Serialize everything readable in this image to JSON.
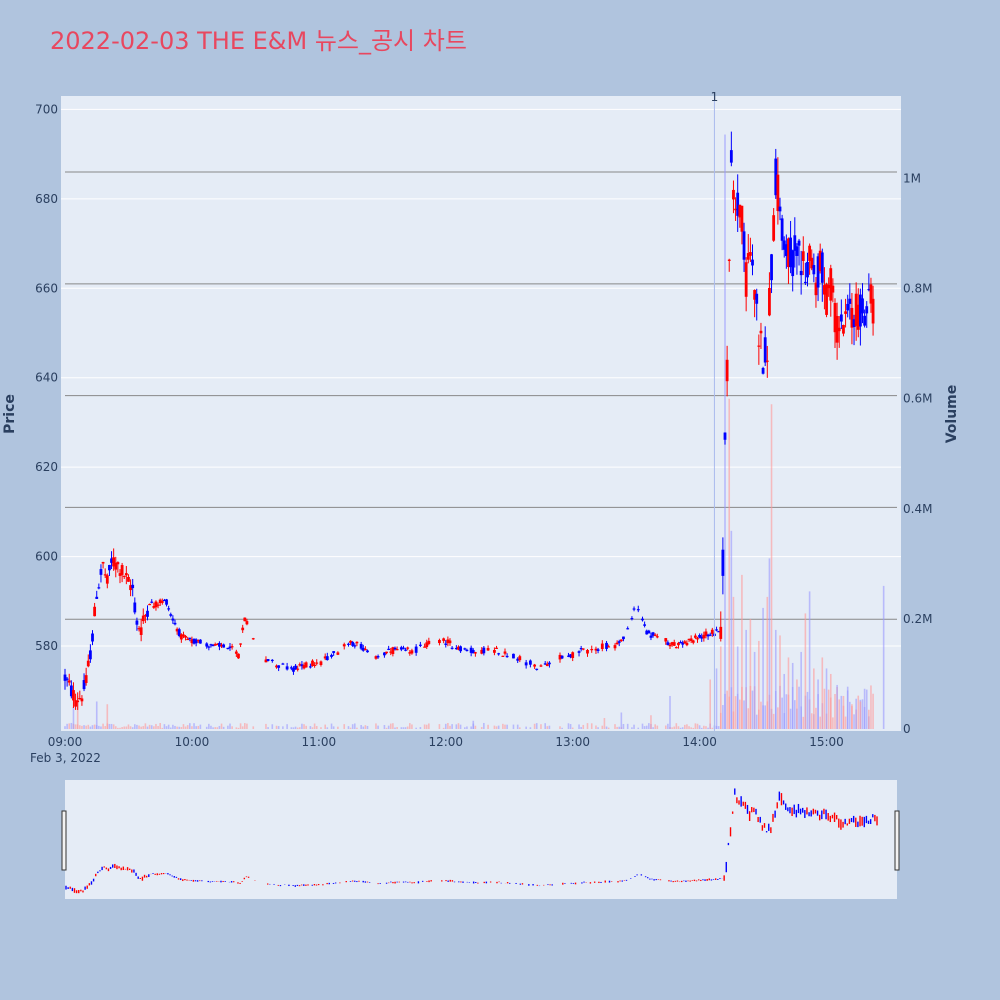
{
  "chart_data": {
    "type": "candlestick",
    "title": "2022-02-03 THE E&M 뉴스_공시 차트",
    "ylabel": "Price",
    "y2label": "Volume",
    "date_label": "Feb 3, 2022",
    "x_ticks": [
      "09:00",
      "10:00",
      "11:00",
      "12:00",
      "13:00",
      "14:00",
      "15:00"
    ],
    "price_ticks": [
      580,
      600,
      620,
      640,
      660,
      680,
      700
    ],
    "volume_ticks": [
      "0",
      "0.2M",
      "0.4M",
      "0.6M",
      "0.8M",
      "1M"
    ],
    "news_marker": {
      "label": "1",
      "time": "14:07"
    },
    "ylim": [
      561,
      703
    ],
    "y2lim": [
      0,
      1150000
    ],
    "xlim_minutes": [
      0,
      390
    ],
    "horizontal_levels": [
      586,
      611,
      636,
      661,
      686
    ],
    "colors": {
      "up": "#ff0000",
      "down": "#0000ff",
      "title": "#e8475f",
      "bg": "#e5ecf6",
      "page": "#b0c4de"
    },
    "anchors": [
      [
        0,
        573
      ],
      [
        3,
        570
      ],
      [
        5,
        568
      ],
      [
        8,
        569
      ],
      [
        10,
        572
      ],
      [
        13,
        582
      ],
      [
        15,
        592
      ],
      [
        18,
        598
      ],
      [
        20,
        594
      ],
      [
        22,
        599
      ],
      [
        25,
        598
      ],
      [
        28,
        596
      ],
      [
        30,
        594
      ],
      [
        32,
        593
      ],
      [
        34,
        585
      ],
      [
        36,
        584
      ],
      [
        38,
        587
      ],
      [
        40,
        590
      ],
      [
        42,
        589
      ],
      [
        45,
        590
      ],
      [
        48,
        590
      ],
      [
        50,
        587
      ],
      [
        52,
        585
      ],
      [
        55,
        582
      ],
      [
        60,
        581
      ],
      [
        65,
        581
      ],
      [
        70,
        580
      ],
      [
        75,
        580
      ],
      [
        80,
        579
      ],
      [
        82,
        578
      ],
      [
        85,
        586
      ],
      [
        88,
        583
      ],
      [
        90,
        580
      ],
      [
        95,
        577
      ],
      [
        100,
        576
      ],
      [
        105,
        575
      ],
      [
        110,
        575
      ],
      [
        115,
        576
      ],
      [
        120,
        576
      ],
      [
        125,
        578
      ],
      [
        130,
        579
      ],
      [
        135,
        581
      ],
      [
        140,
        580
      ],
      [
        145,
        577
      ],
      [
        150,
        578
      ],
      [
        155,
        579
      ],
      [
        160,
        579
      ],
      [
        165,
        579
      ],
      [
        170,
        580
      ],
      [
        175,
        581
      ],
      [
        180,
        581
      ],
      [
        185,
        580
      ],
      [
        190,
        579
      ],
      [
        195,
        579
      ],
      [
        200,
        579
      ],
      [
        205,
        579
      ],
      [
        210,
        578
      ],
      [
        215,
        577
      ],
      [
        220,
        576
      ],
      [
        225,
        575
      ],
      [
        230,
        576
      ],
      [
        235,
        578
      ],
      [
        240,
        578
      ],
      [
        245,
        579
      ],
      [
        250,
        579
      ],
      [
        255,
        580
      ],
      [
        260,
        580
      ],
      [
        265,
        582
      ],
      [
        268,
        586
      ],
      [
        270,
        590
      ],
      [
        272,
        587
      ],
      [
        275,
        583
      ],
      [
        280,
        582
      ],
      [
        285,
        581
      ],
      [
        290,
        580
      ],
      [
        295,
        581
      ],
      [
        300,
        582
      ],
      [
        305,
        583
      ],
      [
        308,
        583
      ],
      [
        310,
        585
      ],
      [
        311,
        600
      ],
      [
        312,
        625
      ],
      [
        313,
        640
      ],
      [
        314,
        668
      ],
      [
        315,
        690
      ],
      [
        316,
        682
      ],
      [
        318,
        680
      ],
      [
        320,
        675
      ],
      [
        322,
        662
      ],
      [
        324,
        668
      ],
      [
        326,
        660
      ],
      [
        328,
        650
      ],
      [
        330,
        645
      ],
      [
        332,
        648
      ],
      [
        334,
        665
      ],
      [
        336,
        685
      ],
      [
        338,
        678
      ],
      [
        340,
        672
      ],
      [
        342,
        668
      ],
      [
        344,
        666
      ],
      [
        346,
        670
      ],
      [
        348,
        665
      ],
      [
        350,
        663
      ],
      [
        352,
        668
      ],
      [
        355,
        662
      ],
      [
        358,
        665
      ],
      [
        360,
        658
      ],
      [
        362,
        660
      ],
      [
        365,
        652
      ],
      [
        368,
        650
      ],
      [
        370,
        655
      ],
      [
        372,
        653
      ],
      [
        375,
        655
      ],
      [
        378,
        656
      ],
      [
        380,
        657
      ],
      [
        382,
        656
      ]
    ],
    "volume_spikes": [
      [
        4,
        40000
      ],
      [
        6,
        60000
      ],
      [
        15,
        50000
      ],
      [
        20,
        45000
      ],
      [
        193,
        15000
      ],
      [
        255,
        20000
      ],
      [
        263,
        30000
      ],
      [
        277,
        25000
      ],
      [
        286,
        60000
      ],
      [
        305,
        90000
      ],
      [
        308,
        110000
      ],
      [
        310,
        150000
      ],
      [
        312,
        1080000
      ],
      [
        314,
        600000
      ],
      [
        315,
        360000
      ],
      [
        316,
        240000
      ],
      [
        318,
        150000
      ],
      [
        320,
        280000
      ],
      [
        322,
        180000
      ],
      [
        324,
        200000
      ],
      [
        326,
        140000
      ],
      [
        328,
        160000
      ],
      [
        330,
        220000
      ],
      [
        332,
        240000
      ],
      [
        333,
        310000
      ],
      [
        334,
        590000
      ],
      [
        336,
        180000
      ],
      [
        338,
        170000
      ],
      [
        340,
        100000
      ],
      [
        342,
        130000
      ],
      [
        344,
        120000
      ],
      [
        346,
        90000
      ],
      [
        348,
        140000
      ],
      [
        350,
        210000
      ],
      [
        352,
        250000
      ],
      [
        354,
        110000
      ],
      [
        356,
        90000
      ],
      [
        358,
        130000
      ],
      [
        360,
        110000
      ],
      [
        362,
        100000
      ],
      [
        365,
        80000
      ],
      [
        368,
        60000
      ],
      [
        370,
        70000
      ],
      [
        372,
        45000
      ],
      [
        374,
        55000
      ],
      [
        376,
        50000
      ],
      [
        378,
        40000
      ],
      [
        380,
        35000
      ],
      [
        387,
        260000
      ]
    ]
  }
}
